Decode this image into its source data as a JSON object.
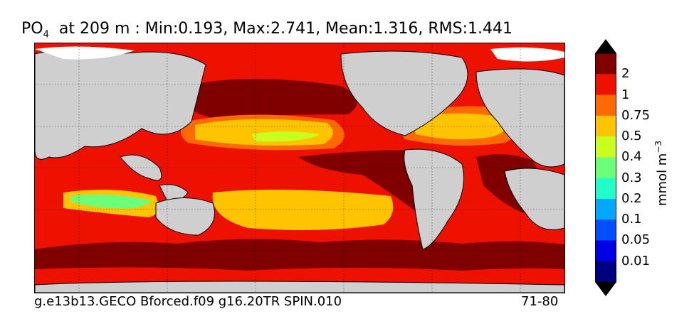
{
  "title": {
    "variable": "PO",
    "subscript": "4",
    "rest": "  at 209 m : Min:0.193, Max:2.741, Mean:1.316, RMS:1.441"
  },
  "footer": {
    "left": "g.e13b13.GECO Bforced.f09 g16.20TR SPIN.010",
    "right": "71-80"
  },
  "colorbar": {
    "unit_base": "mmol m",
    "unit_exp": "−3",
    "ticks": [
      "2",
      "1",
      "0.75",
      "0.5",
      "0.4",
      "0.3",
      "0.2",
      "0.1",
      "0.05",
      "0.01"
    ],
    "colors": [
      "#800000",
      "#ee1100",
      "#ff6a00",
      "#ffc400",
      "#c8ff1e",
      "#6cff7a",
      "#20ffc8",
      "#00a8ff",
      "#0050ff",
      "#0000e8",
      "#000080"
    ]
  },
  "map_colors": {
    "land": "#cfcfcf",
    "ice": "#ffffff"
  }
}
